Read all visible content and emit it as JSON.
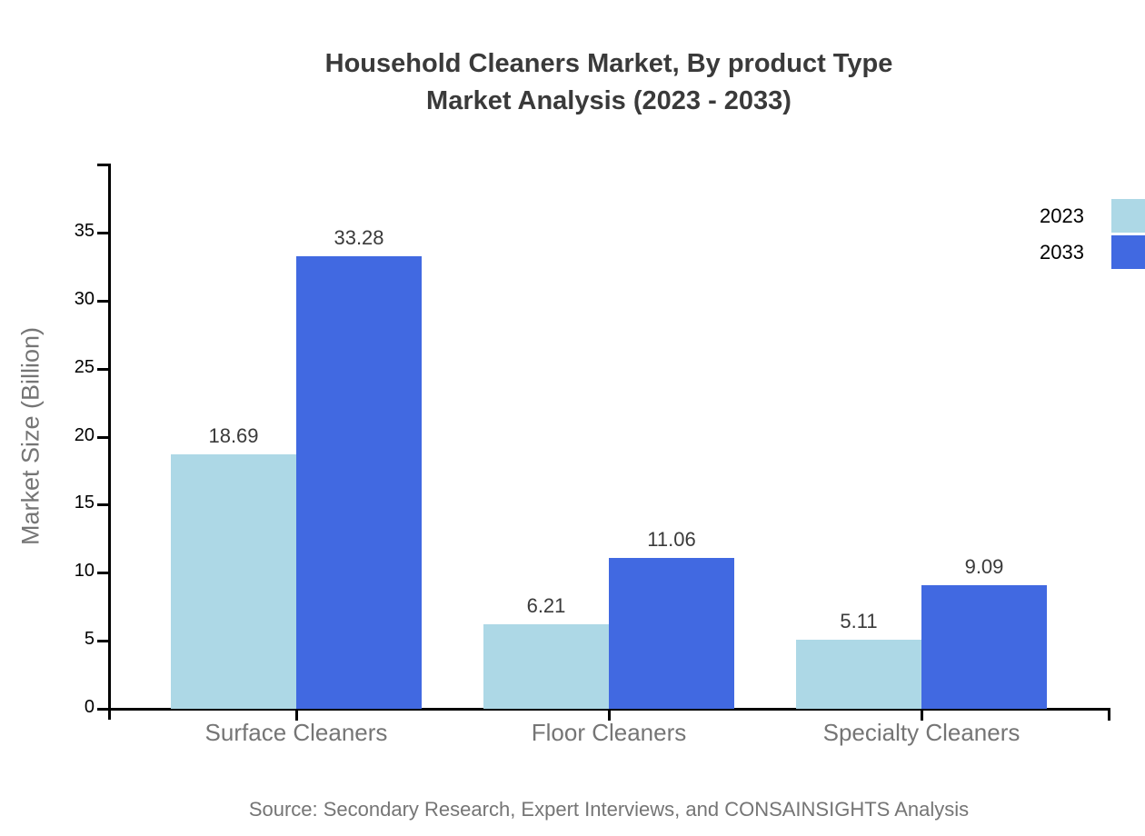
{
  "title": {
    "line1": "Household Cleaners Market, By product Type",
    "line2": "Market Analysis (2023 - 2033)"
  },
  "source": "Source: Secondary Research, Expert Interviews, and CONSAINSIGHTS Analysis",
  "chart_data": {
    "type": "bar",
    "categories": [
      "Surface Cleaners",
      "Floor Cleaners",
      "Specialty Cleaners"
    ],
    "series": [
      {
        "name": "2023",
        "color": "#ADD8E6",
        "values": [
          18.69,
          6.21,
          5.11
        ]
      },
      {
        "name": "2033",
        "color": "#4169E1",
        "values": [
          33.28,
          11.06,
          9.09
        ]
      }
    ],
    "value_labels": [
      "18.69",
      "33.28",
      "6.21",
      "11.06",
      "5.11",
      "9.09"
    ],
    "ylabel": "Market Size (Billion)",
    "xlabel": "",
    "ylim": [
      0,
      40
    ],
    "yticks": [
      0,
      5,
      10,
      15,
      20,
      25,
      30,
      35
    ],
    "grid": false,
    "legend_position": "upper right",
    "bar_label_color": "#3a3a3a",
    "axis_color": "#000000",
    "category_text_color": "#757575"
  },
  "legend": {
    "items": [
      {
        "label": "2023",
        "color": "#ADD8E6"
      },
      {
        "label": "2033",
        "color": "#4169E1"
      }
    ]
  }
}
